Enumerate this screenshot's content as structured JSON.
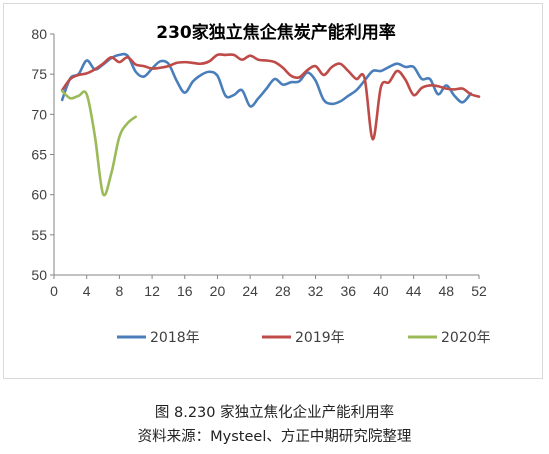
{
  "chart_data": {
    "type": "line",
    "title": "230家独立焦企焦炭产能利用率",
    "xlabel": "",
    "ylabel": "",
    "xlim": [
      0,
      52
    ],
    "ylim": [
      50,
      80
    ],
    "x_ticks": [
      0,
      4,
      8,
      12,
      16,
      20,
      24,
      28,
      32,
      36,
      40,
      44,
      48,
      52
    ],
    "y_ticks": [
      50,
      55,
      60,
      65,
      70,
      75,
      80
    ],
    "grid": false,
    "legend_position": "bottom",
    "series": [
      {
        "name": "2018年",
        "color": "#4a7ebb",
        "x": [
          1,
          2,
          3,
          4,
          5,
          6,
          7,
          8,
          9,
          10,
          11,
          12,
          13,
          14,
          15,
          16,
          17,
          18,
          19,
          20,
          21,
          22,
          23,
          24,
          25,
          26,
          27,
          28,
          29,
          30,
          31,
          32,
          33,
          34,
          35,
          36,
          37,
          38,
          39,
          40,
          41,
          42,
          43,
          44,
          45,
          46,
          47,
          48,
          49,
          50,
          51
        ],
        "y": [
          71.8,
          74.5,
          75.0,
          76.7,
          75.6,
          76.2,
          77.0,
          77.4,
          77.3,
          75.3,
          74.7,
          75.7,
          76.6,
          76.3,
          74.2,
          72.7,
          74.1,
          74.9,
          75.3,
          74.8,
          72.3,
          72.4,
          73.0,
          71.0,
          72.0,
          73.2,
          74.4,
          73.7,
          74.0,
          74.1,
          75.2,
          74.2,
          71.8,
          71.3,
          71.6,
          72.3,
          73.0,
          74.2,
          75.4,
          75.4,
          75.9,
          76.3,
          75.9,
          75.9,
          74.4,
          74.4,
          72.5,
          73.6,
          72.3,
          71.5,
          72.6
        ]
      },
      {
        "name": "2019年",
        "color": "#be4b48",
        "x": [
          1,
          2,
          3,
          4,
          5,
          6,
          7,
          8,
          9,
          10,
          11,
          12,
          13,
          14,
          15,
          16,
          17,
          18,
          19,
          20,
          21,
          22,
          23,
          24,
          25,
          26,
          27,
          28,
          29,
          30,
          31,
          32,
          33,
          34,
          35,
          36,
          37,
          38,
          39,
          40,
          41,
          42,
          43,
          44,
          45,
          46,
          47,
          48,
          49,
          50,
          51,
          52
        ],
        "y": [
          73.0,
          74.4,
          74.9,
          75.1,
          75.6,
          76.3,
          77.1,
          76.5,
          77.1,
          76.2,
          76.0,
          75.7,
          75.8,
          76.0,
          76.4,
          76.5,
          76.4,
          76.3,
          76.6,
          77.4,
          77.4,
          77.4,
          76.8,
          77.3,
          76.8,
          76.7,
          76.5,
          75.8,
          74.8,
          74.6,
          75.5,
          76.0,
          74.9,
          75.9,
          76.3,
          75.4,
          74.4,
          74.5,
          66.9,
          73.4,
          74.0,
          75.4,
          74.3,
          72.4,
          73.3,
          73.6,
          73.5,
          73.2,
          73.1,
          73.2,
          72.5,
          72.2
        ]
      },
      {
        "name": "2020年",
        "color": "#9bbb59",
        "x": [
          1,
          2,
          3,
          4,
          5,
          6,
          7,
          8,
          9,
          10
        ],
        "y": [
          72.9,
          72.0,
          72.3,
          72.5,
          67.3,
          60.1,
          62.6,
          67.2,
          68.9,
          69.7
        ]
      }
    ]
  },
  "caption": {
    "figure_label": "图 8.230 家独立焦化企业产能利用率",
    "source": "资料来源：Mysteel、方正中期研究院整理"
  }
}
